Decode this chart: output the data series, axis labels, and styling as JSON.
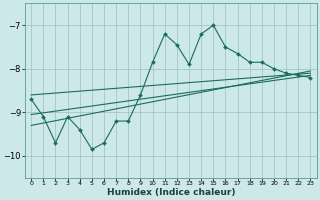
{
  "xlabel": "Humidex (Indice chaleur)",
  "bg_color": "#cce8e8",
  "grid_color": "#9dbfbf",
  "line_color": "#1a6b60",
  "xlim": [
    -0.5,
    23.5
  ],
  "ylim": [
    -10.5,
    -6.5
  ],
  "yticks": [
    -10,
    -9,
    -8,
    -7
  ],
  "xticks": [
    0,
    1,
    2,
    3,
    4,
    5,
    6,
    7,
    8,
    9,
    10,
    11,
    12,
    13,
    14,
    15,
    16,
    17,
    18,
    19,
    20,
    21,
    22,
    23
  ],
  "series1_x": [
    0,
    1,
    2,
    3,
    4,
    5,
    6,
    7,
    8,
    9,
    10,
    11,
    12,
    13,
    14,
    15,
    16,
    17,
    18,
    19,
    20,
    21,
    22,
    23
  ],
  "series1_y": [
    -8.7,
    -9.1,
    -9.7,
    -9.1,
    -9.4,
    -9.85,
    -9.7,
    -9.2,
    -9.2,
    -8.6,
    -7.85,
    -7.2,
    -7.45,
    -7.9,
    -7.2,
    -7.0,
    -7.5,
    -7.65,
    -7.85,
    -7.85,
    -8.0,
    -8.1,
    -8.15,
    -8.2
  ],
  "regline1_x": [
    0,
    23
  ],
  "regline1_y": [
    -8.6,
    -8.1
  ],
  "regline2_x": [
    0,
    23
  ],
  "regline2_y": [
    -9.05,
    -8.15
  ],
  "regline3_x": [
    0,
    23
  ],
  "regline3_y": [
    -9.3,
    -8.05
  ]
}
